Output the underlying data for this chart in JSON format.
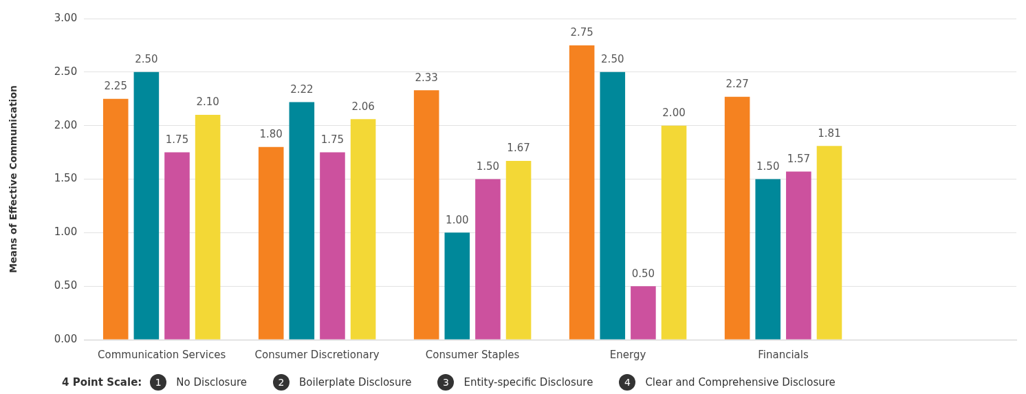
{
  "chart_data": {
    "type": "bar",
    "ylabel": "Means of Effective Communication",
    "categories": [
      "Communication Services",
      "Consumer Discretionary",
      "Consumer Staples",
      "Energy",
      "Financials",
      null
    ],
    "series": [
      {
        "color": "#f58220",
        "values": [
          2.25,
          1.8,
          2.33,
          2.75,
          2.27,
          null
        ],
        "value_labels": [
          "2.25",
          "1.80",
          "2.33",
          "2.75",
          "2.27",
          null
        ]
      },
      {
        "color": "#00889a",
        "values": [
          2.5,
          2.22,
          1.0,
          2.5,
          1.5,
          null
        ],
        "value_labels": [
          "2.50",
          "2.22",
          "1.00",
          "2.50",
          "1.50",
          null
        ]
      },
      {
        "color": "#cc519e",
        "values": [
          1.75,
          1.75,
          1.5,
          0.5,
          1.57,
          null
        ],
        "value_labels": [
          "1.75",
          "1.75",
          "1.50",
          "0.50",
          "1.57",
          null
        ]
      },
      {
        "color": "#f3d836",
        "values": [
          2.1,
          2.06,
          1.67,
          2.0,
          1.81,
          null
        ],
        "value_labels": [
          "2.10",
          "2.06",
          "1.67",
          "2.00",
          "1.81",
          null
        ]
      }
    ],
    "ylim": [
      0,
      3
    ],
    "yticks": [
      {
        "value": 0,
        "label": "0.00"
      },
      {
        "value": 0.5,
        "label": "0.50"
      },
      {
        "value": 1,
        "label": "1.00"
      },
      {
        "value": 1.5,
        "label": "1.50"
      },
      {
        "value": 2,
        "label": "2.00"
      },
      {
        "value": 2.5,
        "label": "2.50"
      },
      {
        "value": 3,
        "label": "3.00"
      }
    ],
    "grid": "y",
    "legend": false,
    "annotations": [
      "4 Point Scale:",
      "1",
      "No Disclosure",
      "2",
      "Boilerplate Disclosure",
      "3",
      "Entity-specific Disclosure",
      "4",
      "Clear and Comprehensive Disclosure"
    ]
  }
}
